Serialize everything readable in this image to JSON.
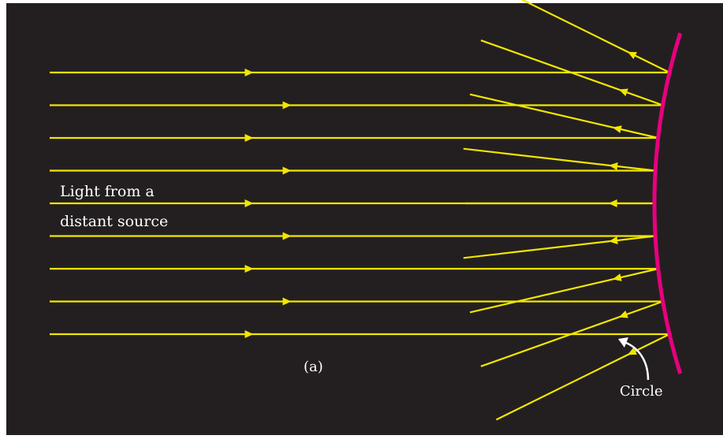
{
  "diagram": {
    "type": "spherical mirror reflection (spherical aberration)",
    "labels": {
      "source_line1": "Light from a",
      "source_line2": "distant source",
      "panel": "(a)",
      "mirror": "Circle"
    },
    "colors": {
      "background": "#231f20",
      "rays": "#f2e600",
      "mirror": "#e6007e",
      "text": "#ffffff",
      "pointer": "#ffffff"
    },
    "ray_count": 9,
    "ray_heights_relative_to_axis": [
      -4,
      -3,
      -2,
      -1,
      0,
      1,
      2,
      3,
      4
    ],
    "mirror_shape": "circle arc",
    "incoming_direction": "left-to-right",
    "reflected_direction": "right-to-left toward focal region"
  }
}
